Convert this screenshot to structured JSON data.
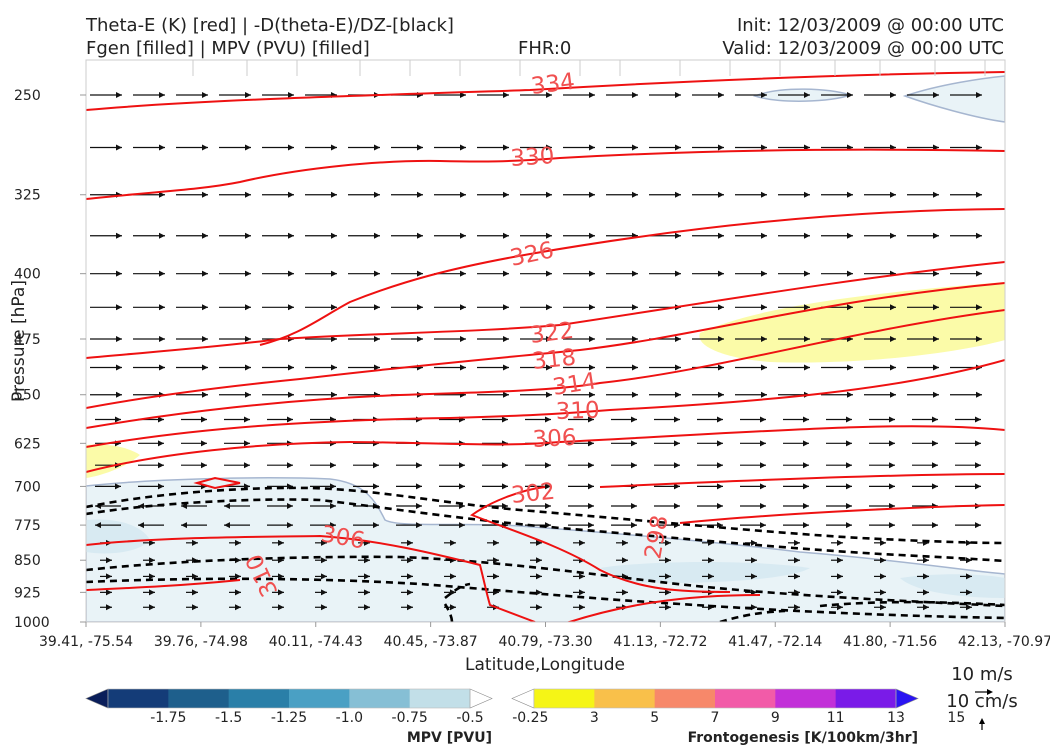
{
  "header": {
    "title_left_1": "Theta-E (K) [red] | -D(theta-E)/DZ-[black]",
    "title_left_2": "Fgen [filled] | MPV (PVU) [filled]",
    "fhr": "FHR:0",
    "init": "Init: 12/03/2009 @ 00:00 UTC",
    "valid": "Valid: 12/03/2009 @ 00:00 UTC"
  },
  "chart_data": {
    "type": "cross-section",
    "xlabel": "Latitude,Longitude",
    "ylabel": "Pressure [hPa]",
    "x_ticks": [
      "39.41, -75.54",
      "39.76, -74.98",
      "40.11, -74.43",
      "40.45, -73.87",
      "40.79, -73.30",
      "41.13, -72.72",
      "41.47, -72.14",
      "41.80, -71.56",
      "42.13, -70.97"
    ],
    "y_ticks": [
      250,
      325,
      400,
      475,
      550,
      625,
      700,
      775,
      850,
      925,
      1000
    ],
    "ylim": [
      1000,
      200
    ],
    "y_scale": "log",
    "theta_e_contour_labels": [
      "334",
      "330",
      "326",
      "322",
      "318",
      "314",
      "310",
      "306",
      "302",
      "306",
      "298",
      "310"
    ],
    "wind_levels_hpa": [
      250,
      287,
      325,
      362,
      400,
      437,
      475,
      512,
      550,
      587,
      625,
      662,
      700,
      737,
      775,
      812,
      850,
      887,
      925,
      962
    ],
    "wind_reference": {
      "horizontal": "10 m/s",
      "vertical": "10 cm/s"
    },
    "colors": {
      "theta_e": "#ee1111",
      "ddz": "#000000",
      "mpv_fill": "#e9f3f7",
      "fgen_fill": "#fbfba8"
    }
  },
  "colorbars": {
    "mpv": {
      "title": "MPV [PVU]",
      "labels": [
        "-1.75",
        "-1.5",
        "-1.25",
        "-1.0",
        "-0.75",
        "-0.5",
        "-0.25"
      ],
      "colors": [
        "#0a1e5a",
        "#143c78",
        "#1e5f8c",
        "#2a7fa8",
        "#4aa0c4",
        "#86bfd5",
        "#c2dfe8",
        "#ffffff"
      ]
    },
    "fgen": {
      "title": "Frontogenesis [K/100km/3hr]",
      "labels": [
        "3",
        "5",
        "7",
        "9",
        "11",
        "13",
        "15"
      ],
      "colors": [
        "#ffffff",
        "#f5f516",
        "#f9c04a",
        "#f7886a",
        "#f25ba8",
        "#c230d8",
        "#7a1be8",
        "#2a14f2"
      ]
    }
  }
}
